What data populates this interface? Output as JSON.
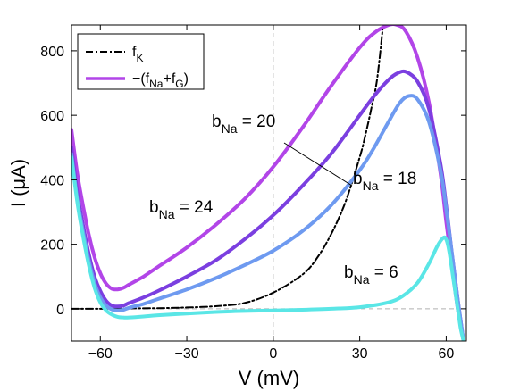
{
  "chart_data": {
    "type": "line",
    "xlabel": "V (mV)",
    "ylabel": "I (μA)",
    "xlim": [
      -70,
      67
    ],
    "ylim": [
      -100,
      880
    ],
    "xticks": [
      -60,
      -30,
      0,
      30,
      60
    ],
    "yticks": [
      0,
      200,
      400,
      600,
      800
    ],
    "x_tick_labels": [
      "−60",
      "−30",
      "0",
      "30",
      "60"
    ],
    "y_tick_labels": [
      "0",
      "200",
      "400",
      "600",
      "800"
    ],
    "grid": false,
    "reference_lines": [
      "x = 0 (dashed)",
      "y = 0 (dashed)"
    ],
    "legend": {
      "position": "top-left",
      "entries": [
        {
          "label": "f",
          "sub": "K",
          "style": "dash-dot",
          "color": "#000000"
        },
        {
          "label": "−(f",
          "sub": "Na",
          "label2": "+f",
          "sub2": "G",
          "label3": ")",
          "style": "solid",
          "color": "#B245E8"
        }
      ]
    },
    "series": [
      {
        "style": "dash-dot",
        "color": "#000000",
        "x": [
          -70,
          -60,
          -50,
          -40,
          -30,
          -20,
          -10,
          0,
          10,
          15,
          20,
          25,
          30,
          32,
          34,
          36,
          38
        ],
        "y": [
          0,
          0,
          1,
          2,
          4,
          8,
          18,
          50,
          105,
          155,
          230,
          330,
          470,
          540,
          620,
          710,
          870
        ]
      },
      {
        "annotation": "b_Na = 24",
        "color": "#B245E8",
        "x": [
          -70,
          -68,
          -66,
          -64,
          -62,
          -60,
          -58,
          -56,
          -54,
          -52,
          -50,
          -45,
          -40,
          -30,
          -20,
          -10,
          0,
          10,
          20,
          30,
          35,
          40,
          43,
          46,
          50,
          54,
          58,
          60,
          62,
          64,
          66
        ],
        "y": [
          555,
          420,
          320,
          230,
          160,
          110,
          78,
          62,
          60,
          65,
          75,
          100,
          130,
          190,
          260,
          340,
          440,
          560,
          690,
          810,
          855,
          880,
          880,
          860,
          780,
          640,
          420,
          270,
          130,
          0,
          -100
        ]
      },
      {
        "annotation": "b_Na = 20",
        "color": "#7B3FE0",
        "x": [
          -70,
          -68,
          -66,
          -64,
          -62,
          -60,
          -58,
          -56,
          -54,
          -52,
          -50,
          -45,
          -40,
          -30,
          -20,
          -10,
          0,
          10,
          20,
          30,
          35,
          40,
          43,
          46,
          50,
          54,
          58,
          60,
          62,
          64,
          66
        ],
        "y": [
          500,
          360,
          260,
          170,
          100,
          55,
          25,
          10,
          7,
          10,
          18,
          35,
          55,
          100,
          150,
          215,
          290,
          380,
          480,
          600,
          660,
          710,
          730,
          735,
          705,
          620,
          450,
          320,
          170,
          30,
          -100
        ]
      },
      {
        "annotation": "b_Na = 18",
        "color": "#6E9AF0",
        "x": [
          -70,
          -68,
          -66,
          -64,
          -62,
          -60,
          -58,
          -56,
          -54,
          -52,
          -50,
          -45,
          -40,
          -30,
          -20,
          -10,
          0,
          10,
          20,
          30,
          35,
          40,
          44,
          47,
          50,
          54,
          58,
          60,
          62,
          64,
          66
        ],
        "y": [
          480,
          340,
          240,
          150,
          80,
          35,
          10,
          -2,
          -5,
          -3,
          3,
          15,
          30,
          60,
          95,
          135,
          180,
          240,
          320,
          430,
          500,
          580,
          640,
          660,
          650,
          580,
          430,
          310,
          170,
          30,
          -100
        ]
      },
      {
        "annotation": "b_Na = 6",
        "color": "#5AE6E6",
        "x": [
          -70,
          -68,
          -66,
          -64,
          -62,
          -60,
          -58,
          -56,
          -54,
          -52,
          -50,
          -45,
          -40,
          -30,
          -20,
          -10,
          0,
          10,
          20,
          30,
          40,
          45,
          50,
          54,
          57,
          59,
          60,
          61,
          62,
          63,
          64,
          65,
          66
        ],
        "y": [
          470,
          330,
          225,
          135,
          65,
          20,
          -5,
          -18,
          -25,
          -27,
          -27,
          -24,
          -20,
          -15,
          -10,
          -7,
          -5,
          -3,
          0,
          5,
          20,
          40,
          80,
          140,
          195,
          220,
          215,
          180,
          120,
          60,
          0,
          -60,
          -100
        ]
      }
    ],
    "annotations": [
      {
        "label": "b",
        "sub": "Na",
        "rest": " = 24"
      },
      {
        "label": "b",
        "sub": "Na",
        "rest": " = 20"
      },
      {
        "label": "b",
        "sub": "Na",
        "rest": " = 18"
      },
      {
        "label": "b",
        "sub": "Na",
        "rest": " = 6"
      }
    ]
  }
}
